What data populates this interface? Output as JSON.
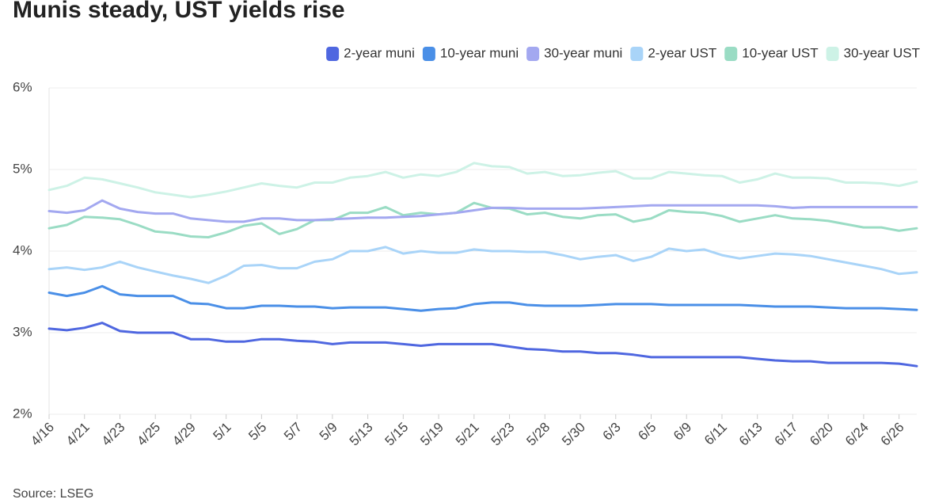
{
  "chart_data": {
    "type": "line",
    "title": "Munis steady, UST yields rise",
    "source": "Source: LSEG",
    "categories": [
      "4/16",
      null,
      "4/21",
      null,
      "4/23",
      null,
      "4/25",
      null,
      "4/29",
      null,
      "5/1",
      null,
      "5/5",
      null,
      "5/7",
      null,
      "5/9",
      null,
      "5/13",
      null,
      "5/15",
      null,
      "5/19",
      null,
      "5/21",
      null,
      "5/23",
      null,
      "5/28",
      null,
      "5/30",
      null,
      "6/3",
      null,
      "6/5",
      null,
      "6/9",
      null,
      "6/11",
      null,
      "6/13",
      null,
      "6/17",
      null,
      "6/20",
      null,
      "6/24",
      null,
      "6/26",
      null
    ],
    "series": [
      {
        "name": "2-year muni",
        "color": "#4f67e0",
        "values": [
          3.05,
          3.03,
          3.06,
          3.12,
          3.02,
          3.0,
          3.0,
          3.0,
          2.92,
          2.92,
          2.89,
          2.89,
          2.92,
          2.92,
          2.9,
          2.89,
          2.86,
          2.88,
          2.88,
          2.88,
          2.86,
          2.84,
          2.86,
          2.86,
          2.86,
          2.86,
          2.83,
          2.8,
          2.79,
          2.77,
          2.77,
          2.75,
          2.75,
          2.73,
          2.7,
          2.7,
          2.7,
          2.7,
          2.7,
          2.7,
          2.68,
          2.66,
          2.65,
          2.65,
          2.63,
          2.63,
          2.63,
          2.63,
          2.62,
          2.59
        ]
      },
      {
        "name": "10-year muni",
        "color": "#4a8fe7",
        "values": [
          3.49,
          3.45,
          3.49,
          3.57,
          3.47,
          3.45,
          3.45,
          3.45,
          3.36,
          3.35,
          3.3,
          3.3,
          3.33,
          3.33,
          3.32,
          3.32,
          3.3,
          3.31,
          3.31,
          3.31,
          3.29,
          3.27,
          3.29,
          3.3,
          3.35,
          3.37,
          3.37,
          3.34,
          3.33,
          3.33,
          3.33,
          3.34,
          3.35,
          3.35,
          3.35,
          3.34,
          3.34,
          3.34,
          3.34,
          3.34,
          3.33,
          3.32,
          3.32,
          3.32,
          3.31,
          3.3,
          3.3,
          3.3,
          3.29,
          3.28
        ]
      },
      {
        "name": "30-year muni",
        "color": "#a3a8f0",
        "values": [
          4.49,
          4.47,
          4.5,
          4.62,
          4.52,
          4.48,
          4.46,
          4.46,
          4.4,
          4.38,
          4.36,
          4.36,
          4.4,
          4.4,
          4.38,
          4.38,
          4.39,
          4.4,
          4.41,
          4.41,
          4.42,
          4.43,
          4.45,
          4.47,
          4.5,
          4.53,
          4.53,
          4.52,
          4.52,
          4.52,
          4.52,
          4.53,
          4.54,
          4.55,
          4.56,
          4.56,
          4.56,
          4.56,
          4.56,
          4.56,
          4.56,
          4.55,
          4.53,
          4.54,
          4.54,
          4.54,
          4.54,
          4.54,
          4.54,
          4.54
        ]
      },
      {
        "name": "2-year UST",
        "color": "#a9d4f8",
        "values": [
          3.78,
          3.8,
          3.77,
          3.8,
          3.87,
          3.8,
          3.75,
          3.7,
          3.66,
          3.61,
          3.7,
          3.82,
          3.83,
          3.79,
          3.79,
          3.87,
          3.9,
          4.0,
          4.0,
          4.05,
          3.97,
          4.0,
          3.98,
          3.98,
          4.02,
          4.0,
          4.0,
          3.99,
          3.99,
          3.95,
          3.9,
          3.93,
          3.95,
          3.88,
          3.93,
          4.03,
          4.0,
          4.02,
          3.95,
          3.91,
          3.94,
          3.97,
          3.96,
          3.94,
          3.9,
          3.86,
          3.82,
          3.78,
          3.72,
          3.74
        ]
      },
      {
        "name": "10-year UST",
        "color": "#9adcc4",
        "values": [
          4.28,
          4.32,
          4.42,
          4.41,
          4.39,
          4.32,
          4.24,
          4.22,
          4.18,
          4.17,
          4.23,
          4.31,
          4.34,
          4.21,
          4.27,
          4.38,
          4.38,
          4.47,
          4.47,
          4.54,
          4.44,
          4.47,
          4.45,
          4.47,
          4.59,
          4.53,
          4.52,
          4.45,
          4.47,
          4.42,
          4.4,
          4.44,
          4.45,
          4.36,
          4.4,
          4.5,
          4.48,
          4.47,
          4.43,
          4.36,
          4.4,
          4.44,
          4.4,
          4.39,
          4.37,
          4.33,
          4.29,
          4.29,
          4.25,
          4.28
        ]
      },
      {
        "name": "30-year UST",
        "color": "#cdf2e6",
        "values": [
          4.75,
          4.8,
          4.9,
          4.88,
          4.83,
          4.78,
          4.72,
          4.69,
          4.66,
          4.69,
          4.73,
          4.78,
          4.83,
          4.8,
          4.78,
          4.84,
          4.84,
          4.9,
          4.92,
          4.97,
          4.9,
          4.94,
          4.92,
          4.97,
          5.08,
          5.04,
          5.03,
          4.95,
          4.97,
          4.92,
          4.93,
          4.96,
          4.98,
          4.89,
          4.89,
          4.97,
          4.95,
          4.93,
          4.92,
          4.84,
          4.88,
          4.95,
          4.9,
          4.9,
          4.89,
          4.84,
          4.84,
          4.83,
          4.8,
          4.85
        ]
      }
    ],
    "ylim": [
      2,
      6
    ],
    "yticks": [
      {
        "value": 2,
        "label": "2%"
      },
      {
        "value": 3,
        "label": "3%"
      },
      {
        "value": 4,
        "label": "4%"
      },
      {
        "value": 5,
        "label": "5%"
      },
      {
        "value": 6,
        "label": "6%"
      }
    ],
    "grid": true,
    "legend": "top-right"
  }
}
